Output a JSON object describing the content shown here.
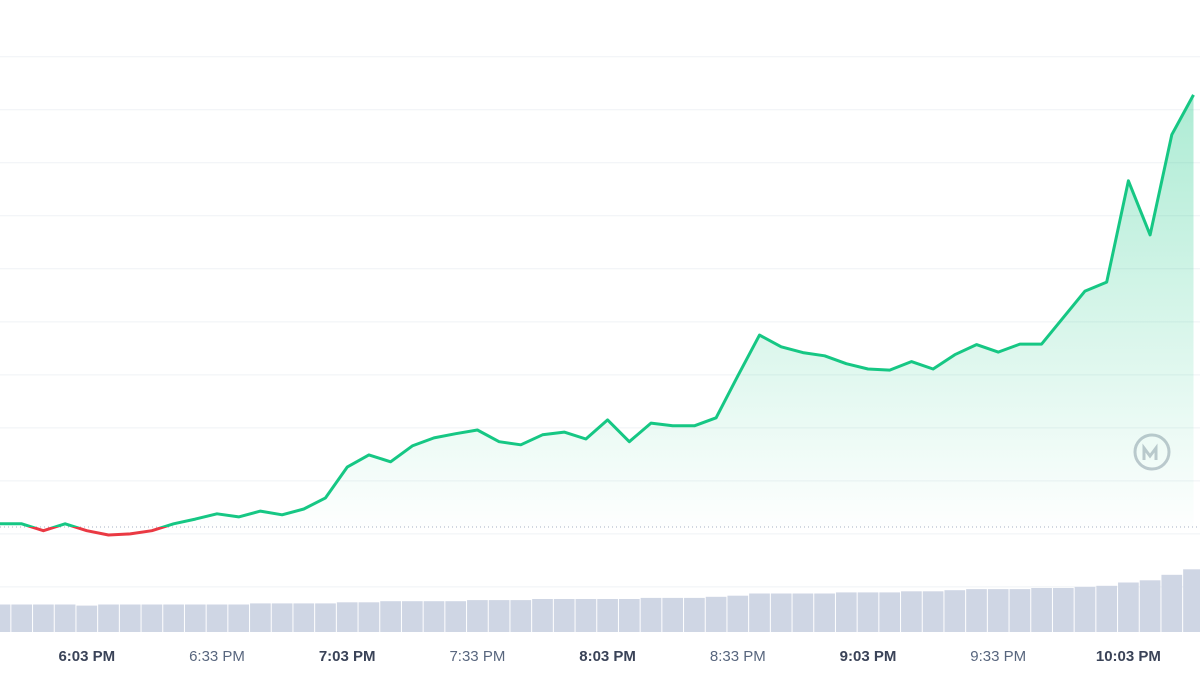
{
  "chart_data": {
    "type": "line",
    "categories": [
      null,
      null,
      null,
      null,
      "6:03 PM",
      null,
      null,
      null,
      null,
      null,
      "6:33 PM",
      null,
      null,
      null,
      null,
      null,
      "7:03 PM",
      null,
      null,
      null,
      null,
      null,
      "7:33 PM",
      null,
      null,
      null,
      null,
      null,
      "8:03 PM",
      null,
      null,
      null,
      null,
      null,
      "8:33 PM",
      null,
      null,
      null,
      null,
      null,
      "9:03 PM",
      null,
      null,
      null,
      null,
      null,
      "9:33 PM",
      null,
      null,
      null,
      null,
      null,
      "10:03 PM",
      null,
      null,
      null
    ],
    "series": [
      {
        "name": "Price",
        "color": "#16c784",
        "down_color": "#ea3943",
        "values": [
          1.19,
          1.19,
          1.06,
          1.19,
          1.06,
          0.98,
          1.0,
          1.06,
          1.19,
          1.28,
          1.38,
          1.32,
          1.43,
          1.36,
          1.47,
          1.68,
          2.26,
          2.49,
          2.36,
          2.66,
          2.81,
          2.89,
          2.96,
          2.74,
          2.68,
          2.87,
          2.92,
          2.79,
          3.15,
          2.74,
          3.09,
          3.04,
          3.04,
          3.19,
          3.98,
          4.75,
          4.53,
          4.42,
          4.36,
          4.21,
          4.11,
          4.09,
          4.25,
          4.11,
          4.38,
          4.57,
          4.43,
          4.58,
          4.58,
          5.08,
          5.58,
          5.75,
          7.66,
          6.64,
          8.53,
          9.28
        ]
      },
      {
        "name": "Volume",
        "color": "#cfd6e4",
        "values": [
          25,
          25,
          25,
          25,
          24,
          25,
          25,
          25,
          25,
          25,
          25,
          25,
          26,
          26,
          26,
          26,
          27,
          27,
          28,
          28,
          28,
          28,
          29,
          29,
          29,
          30,
          30,
          30,
          30,
          30,
          31,
          31,
          31,
          32,
          33,
          35,
          35,
          35,
          35,
          36,
          36,
          36,
          37,
          37,
          38,
          39,
          39,
          39,
          40,
          40,
          41,
          42,
          45,
          47,
          52,
          57
        ]
      }
    ],
    "baseline": 1.13,
    "ylim": [
      -0.85,
      11.07
    ],
    "yticks": [
      0,
      1,
      2,
      3,
      4,
      5,
      6,
      7,
      8,
      9,
      10
    ],
    "vlim": [
      0,
      100
    ],
    "grid": true
  }
}
